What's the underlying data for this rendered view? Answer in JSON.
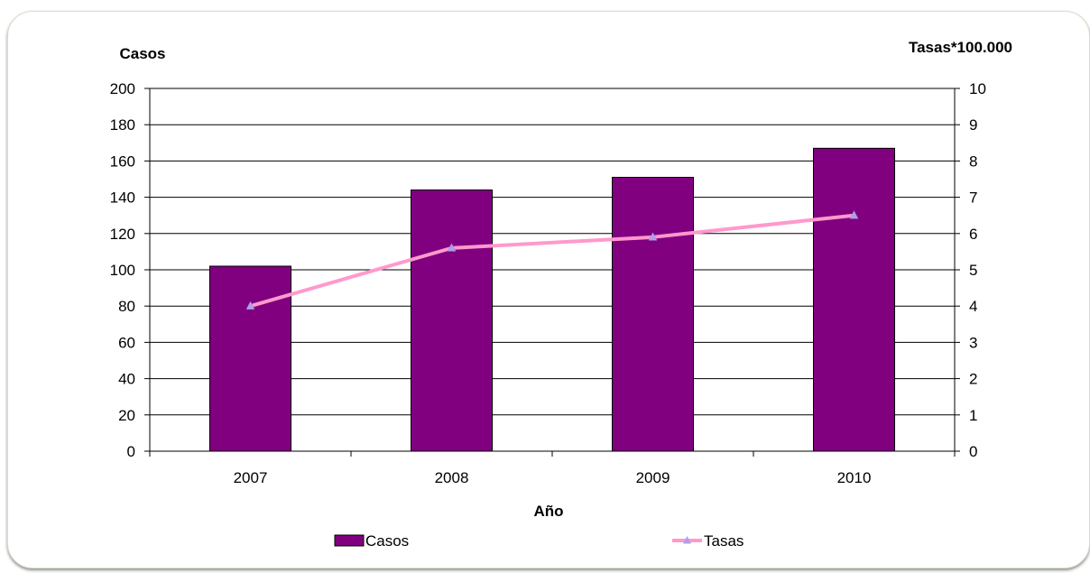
{
  "chart_data": {
    "type": "bar",
    "categories": [
      "2007",
      "2008",
      "2009",
      "2010"
    ],
    "series": [
      {
        "name": "Casos",
        "type": "bar",
        "axis": "left",
        "values": [
          102,
          144,
          151,
          167
        ]
      },
      {
        "name": "Tasas",
        "type": "line",
        "axis": "right",
        "values": [
          4.0,
          5.6,
          5.9,
          6.5
        ]
      }
    ],
    "title": "",
    "xlabel": "Año",
    "ylabel": "Casos",
    "y2label": "Tasas*100.000",
    "ylim": [
      0,
      200
    ],
    "yticks": [
      0,
      20,
      40,
      60,
      80,
      100,
      120,
      140,
      160,
      180,
      200
    ],
    "y2lim": [
      0,
      10
    ],
    "y2ticks": [
      0,
      1,
      2,
      3,
      4,
      5,
      6,
      7,
      8,
      9,
      10
    ],
    "grid": true,
    "legend": "bottom",
    "colors": {
      "bar": "#800080",
      "bar_border": "#000000",
      "line": "#ff99cc",
      "marker": "#b0a0e8"
    }
  }
}
